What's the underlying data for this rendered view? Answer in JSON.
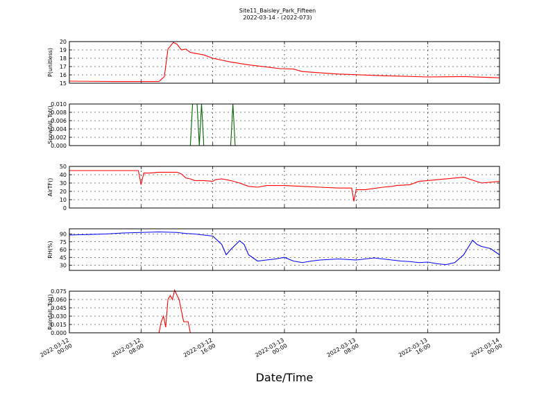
{
  "chart_data": {
    "type": "line",
    "title": "Site11_Baisley_Park_Fifteen",
    "subtitle": "2022-03-14 - (2022-073)",
    "xlabel": "Date/Time",
    "grid": true,
    "x_range": [
      "2022-03-12 00:00",
      "2022-03-14 00:00"
    ],
    "x_tick_values": [
      "2022-03-12 00:00",
      "2022-03-12 08:00",
      "2022-03-12 16:00",
      "2022-03-13 00:00",
      "2022-03-13 08:00",
      "2022-03-13 16:00",
      "2022-03-14 00:00"
    ],
    "x_tick_labels": [
      [
        "2022-03-12",
        "00:00"
      ],
      [
        "2022-03-12",
        "08:00"
      ],
      [
        "2022-03-12",
        "16:00"
      ],
      [
        "2022-03-13",
        "00:00"
      ],
      [
        "2022-03-13",
        "08:00"
      ],
      [
        "2022-03-13",
        "16:00"
      ],
      [
        "2022-03-14",
        "00:00"
      ]
    ],
    "panels": [
      {
        "ylabel": "P(unitless)",
        "ylim": [
          15,
          20
        ],
        "yticks": [
          "15",
          "16",
          "17",
          "18",
          "19",
          "20"
        ],
        "ytick_values": [
          15,
          16,
          17,
          18,
          19,
          20
        ],
        "color": "#ff0000",
        "x": [
          0,
          5,
          10,
          10.2,
          10.6,
          11.0,
          11.6,
          12.0,
          12.5,
          13.0,
          13.5,
          14.0,
          15.0,
          16.0,
          18.0,
          20.0,
          22.0,
          23.5,
          25.0,
          26.0,
          30.0,
          35.0,
          40.0,
          44.0,
          48.0
        ],
        "y": [
          15.25,
          15.2,
          15.2,
          15.4,
          15.8,
          19.1,
          19.9,
          19.7,
          19.0,
          19.1,
          18.7,
          18.6,
          18.4,
          18.0,
          17.55,
          17.2,
          16.95,
          16.75,
          16.7,
          16.4,
          16.1,
          15.9,
          15.75,
          15.8,
          15.65
        ],
        "series_color_key": "red"
      },
      {
        "ylabel": "Snowfall_Tot()",
        "ylim": [
          0,
          0.01
        ],
        "yticks": [
          "0.000",
          "0.002",
          "0.004",
          "0.006",
          "0.008",
          "0.010"
        ],
        "ytick_values": [
          0,
          0.002,
          0.004,
          0.006,
          0.008,
          0.01
        ],
        "color": "#006400",
        "x": [
          0,
          13.5,
          13.75,
          14.25,
          14.5,
          14.75,
          15.0,
          18.0,
          18.25,
          18.5,
          48.0
        ],
        "y": [
          0,
          0,
          0.01,
          0.01,
          0,
          0.01,
          0,
          0,
          0.01,
          0,
          0
        ]
      },
      {
        "ylabel": "AirTF()",
        "ylim": [
          0,
          50
        ],
        "yticks": [
          "0",
          "10",
          "20",
          "30",
          "40",
          "50"
        ],
        "ytick_values": [
          0,
          10,
          20,
          30,
          40,
          50
        ],
        "color": "#ff0000",
        "x": [
          0,
          4,
          7.7,
          8.0,
          8.3,
          9.0,
          10.0,
          11.0,
          12.0,
          12.5,
          13.0,
          13.5,
          14.0,
          15.0,
          16.0,
          16.3,
          17.0,
          18.0,
          19.0,
          20.0,
          21.0,
          22.0,
          24.0,
          26.0,
          28.0,
          30.0,
          31.5,
          31.75,
          32.0,
          33.0,
          35.0,
          36.0,
          36.5,
          38.0,
          39.0,
          40.0,
          41.0,
          43.0,
          44.0,
          46.0,
          48.0
        ],
        "y": [
          45,
          45,
          45,
          28,
          42,
          42,
          43,
          43,
          43,
          41,
          36,
          35,
          33,
          33,
          32,
          34,
          35,
          33,
          30,
          26,
          25,
          27,
          27,
          26,
          25,
          24,
          24,
          8,
          22,
          22,
          25,
          26,
          27,
          28,
          32,
          33,
          34,
          36,
          37,
          30,
          32
        ]
      },
      {
        "ylabel": "RH(%)",
        "ylim": [
          20,
          100
        ],
        "yticks": [
          "30",
          "45",
          "60",
          "75",
          "90"
        ],
        "ytick_values": [
          30,
          45,
          60,
          75,
          90
        ],
        "color": "#0000ff",
        "x": [
          0,
          2,
          4,
          6,
          8,
          10,
          12,
          13,
          14,
          15,
          16,
          17,
          17.5,
          18,
          19,
          19.5,
          20,
          21,
          22,
          23,
          24,
          25,
          26,
          27,
          28,
          30,
          32,
          34,
          36,
          37,
          38,
          39,
          40,
          41,
          42,
          43,
          44,
          45,
          45.5,
          46,
          47,
          48
        ],
        "y": [
          88,
          89,
          90,
          92,
          93,
          94,
          93,
          91,
          90,
          88,
          86,
          70,
          50,
          60,
          77,
          70,
          50,
          38,
          40,
          42,
          45,
          38,
          35,
          38,
          40,
          42,
          40,
          44,
          40,
          38,
          37,
          35,
          36,
          33,
          31,
          35,
          50,
          78,
          70,
          66,
          62,
          50
        ]
      },
      {
        "ylabel": "Rainfall_Tot()",
        "ylim": [
          0,
          0.075
        ],
        "yticks": [
          "0.000",
          "0.015",
          "0.030",
          "0.045",
          "0.060",
          "0.075"
        ],
        "ytick_values": [
          0,
          0.015,
          0.03,
          0.045,
          0.06,
          0.075
        ],
        "color": "#ff0000",
        "x": [
          0,
          10.0,
          10.25,
          10.5,
          10.75,
          11.0,
          11.25,
          11.5,
          11.75,
          12.0,
          12.25,
          12.5,
          12.75,
          13.0,
          13.25,
          13.5,
          48.0
        ],
        "y": [
          0,
          0,
          0.02,
          0.03,
          0.01,
          0.06,
          0.067,
          0.06,
          0.077,
          0.068,
          0.06,
          0.04,
          0.02,
          0.02,
          0.02,
          0,
          0
        ]
      }
    ]
  }
}
